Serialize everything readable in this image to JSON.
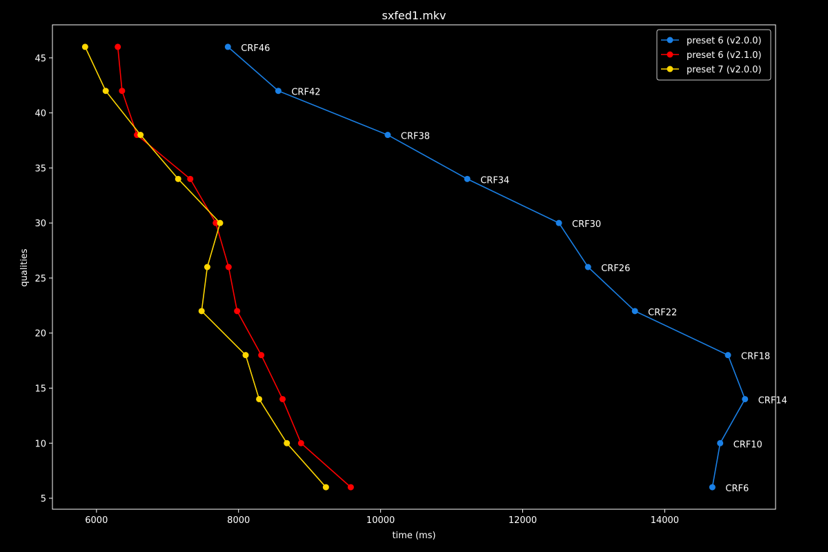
{
  "chart_data": {
    "type": "line",
    "title": "sxfed1.mkv",
    "xlabel": "time (ms)",
    "ylabel": "qualities",
    "xlim": [
      5380,
      15560
    ],
    "ylim": [
      4,
      48
    ],
    "xticks": [
      6000,
      8000,
      10000,
      12000,
      14000
    ],
    "yticks": [
      5,
      10,
      15,
      20,
      25,
      30,
      35,
      40,
      45
    ],
    "grid": false,
    "legend_position": "top-right",
    "background": "#000000",
    "series": [
      {
        "name": "preset 6 (v2.0.0)",
        "color": "#1a80e6",
        "points": [
          {
            "x": 7850,
            "y": 46,
            "label": "CRF46"
          },
          {
            "x": 8560,
            "y": 42,
            "label": "CRF42"
          },
          {
            "x": 10100,
            "y": 38,
            "label": "CRF38"
          },
          {
            "x": 11220,
            "y": 34,
            "label": "CRF34"
          },
          {
            "x": 12510,
            "y": 30,
            "label": "CRF30"
          },
          {
            "x": 12920,
            "y": 26,
            "label": "CRF26"
          },
          {
            "x": 13580,
            "y": 22,
            "label": "CRF22"
          },
          {
            "x": 14890,
            "y": 18,
            "label": "CRF18"
          },
          {
            "x": 15130,
            "y": 14,
            "label": "CRF14"
          },
          {
            "x": 14780,
            "y": 10,
            "label": "CRF10"
          },
          {
            "x": 14670,
            "y": 6,
            "label": "CRF6"
          }
        ]
      },
      {
        "name": "preset 6 (v2.1.0)",
        "color": "#ff0000",
        "points": [
          {
            "x": 6300,
            "y": 46
          },
          {
            "x": 6360,
            "y": 42
          },
          {
            "x": 6570,
            "y": 38
          },
          {
            "x": 7320,
            "y": 34
          },
          {
            "x": 7680,
            "y": 30
          },
          {
            "x": 7860,
            "y": 26
          },
          {
            "x": 7980,
            "y": 22
          },
          {
            "x": 8320,
            "y": 18
          },
          {
            "x": 8620,
            "y": 14
          },
          {
            "x": 8880,
            "y": 10
          },
          {
            "x": 9580,
            "y": 6
          }
        ]
      },
      {
        "name": "preset 7 (v2.0.0)",
        "color": "#ffd700",
        "points": [
          {
            "x": 5840,
            "y": 46
          },
          {
            "x": 6130,
            "y": 42
          },
          {
            "x": 6620,
            "y": 38
          },
          {
            "x": 7150,
            "y": 34
          },
          {
            "x": 7740,
            "y": 30
          },
          {
            "x": 7560,
            "y": 26
          },
          {
            "x": 7480,
            "y": 22
          },
          {
            "x": 8100,
            "y": 18
          },
          {
            "x": 8290,
            "y": 14
          },
          {
            "x": 8680,
            "y": 10
          },
          {
            "x": 9230,
            "y": 6
          }
        ]
      }
    ]
  }
}
